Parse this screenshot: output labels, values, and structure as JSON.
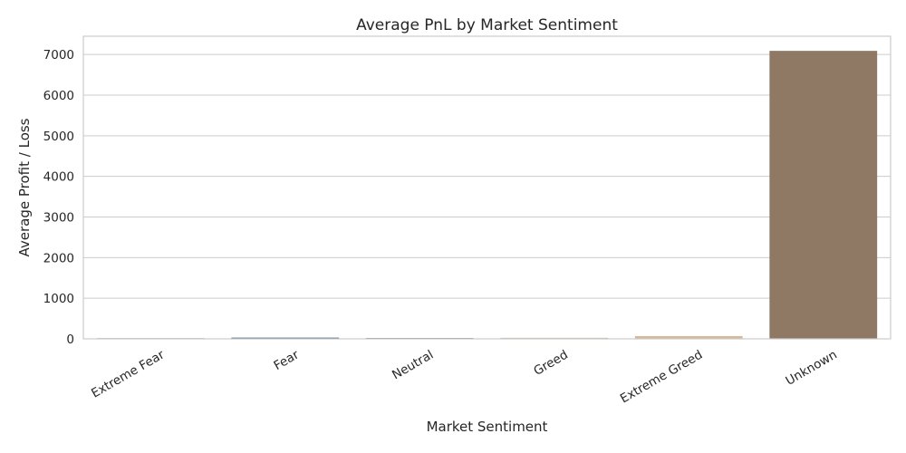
{
  "chart_data": {
    "type": "bar",
    "title": "Average PnL by Market Sentiment",
    "xlabel": "Market Sentiment",
    "ylabel": "Average Profit / Loss",
    "categories": [
      "Extreme Fear",
      "Fear",
      "Neutral",
      "Greed",
      "Extreme Greed",
      "Unknown"
    ],
    "values": [
      15,
      30,
      22,
      25,
      68,
      7090
    ],
    "colors": [
      "#3b5a6e",
      "#4d6f86",
      "#7e8e9a",
      "#c9b8a4",
      "#d6b996",
      "#8f7864"
    ],
    "ylim": [
      0,
      7450
    ],
    "yticks": [
      0,
      1000,
      2000,
      3000,
      4000,
      5000,
      6000,
      7000
    ],
    "grid": "y",
    "legend": "none"
  }
}
